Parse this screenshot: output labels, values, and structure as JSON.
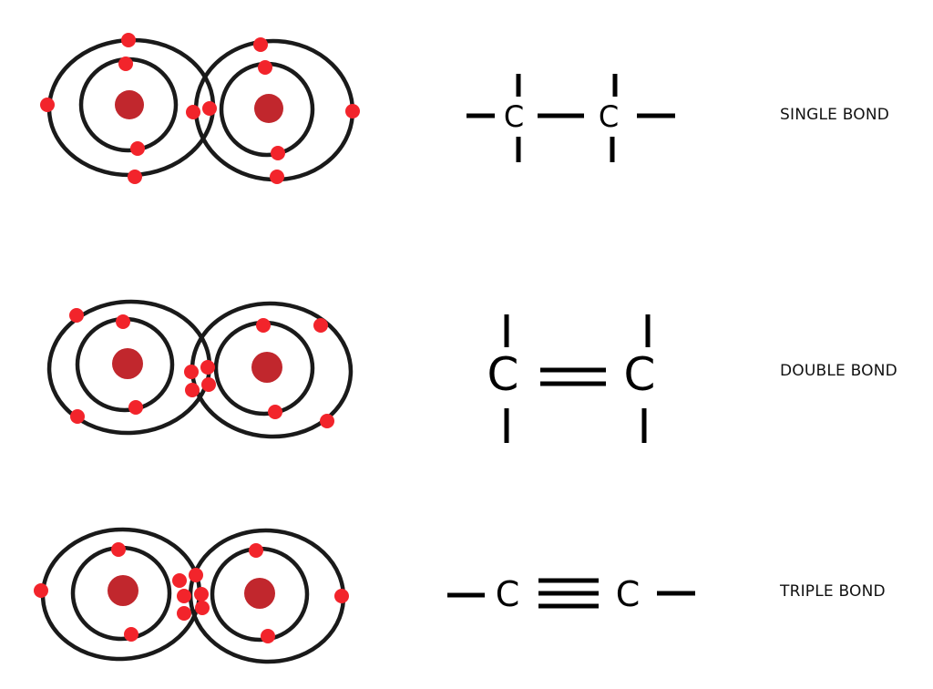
{
  "colors": {
    "nucleus": "#c1272d",
    "electron": "#f2242b",
    "shell": "#1a1a1a",
    "bond_line": "#000000"
  },
  "rows": [
    {
      "label": "SINGLE BOND",
      "bond_order": 1,
      "shared_electrons": 2,
      "atom_symbols": [
        "C",
        "C"
      ]
    },
    {
      "label": "DOUBLE BOND",
      "bond_order": 2,
      "shared_electrons": 4,
      "atom_symbols": [
        "C",
        "C"
      ]
    },
    {
      "label": "TRIPLE BOND",
      "bond_order": 3,
      "shared_electrons": 6,
      "atom_symbols": [
        "C",
        "C"
      ]
    }
  ]
}
